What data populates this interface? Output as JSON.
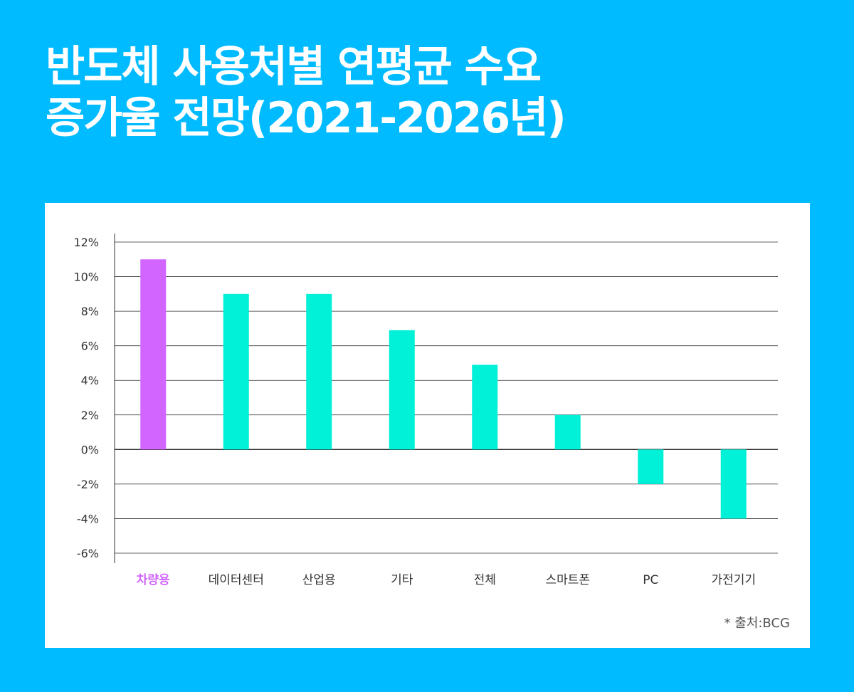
{
  "title": {
    "line1": "반도체 사용처별 연평균 수요",
    "line2": "증가율 전망(2021-2026년)"
  },
  "source": "* 출처:BCG",
  "colors": {
    "background": "#00BBFF",
    "highlight": "#D265FF",
    "bar": "#00F0D8",
    "grid": "#333333",
    "label": "#333333"
  },
  "chart_data": {
    "type": "bar",
    "categories": [
      "차량용",
      "데이터센터",
      "산업용",
      "기타",
      "전체",
      "스마트폰",
      "PC",
      "가전기기"
    ],
    "values": [
      11,
      9,
      9,
      6.9,
      4.9,
      2,
      -2,
      -4
    ],
    "highlight_index": 0,
    "ylim": [
      -6,
      12
    ],
    "yticks": [
      12,
      10,
      8,
      6,
      4,
      2,
      0,
      -2,
      -4,
      -6
    ],
    "ytick_labels": [
      "12%",
      "10%",
      "8%",
      "6%",
      "4%",
      "2%",
      "0%",
      "-2%",
      "-4%",
      "-6%"
    ],
    "grid": true,
    "legend": "none"
  }
}
